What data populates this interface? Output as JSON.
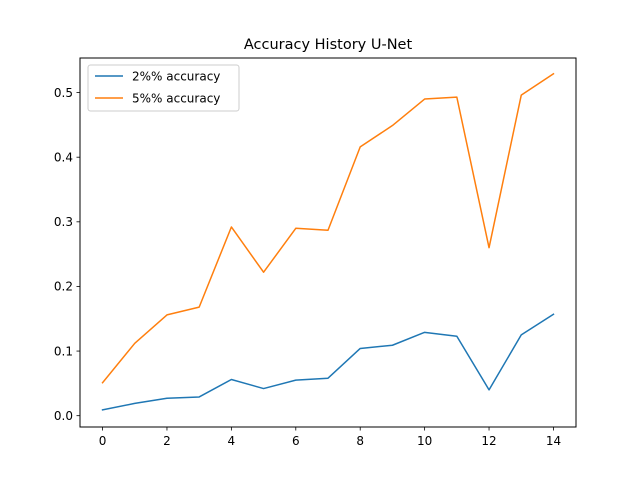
{
  "chart_data": {
    "type": "line",
    "title": "Accuracy History U-Net",
    "xlabel": "",
    "ylabel": "",
    "x": [
      0,
      1,
      2,
      3,
      4,
      5,
      6,
      7,
      8,
      9,
      10,
      11,
      12,
      13,
      14
    ],
    "xlim": [
      -0.7,
      14.7
    ],
    "ylim": [
      -0.0175,
      0.5535
    ],
    "xticks": [
      0,
      2,
      4,
      6,
      8,
      10,
      12,
      14
    ],
    "yticks": [
      0.0,
      0.1,
      0.2,
      0.3,
      0.4,
      0.5
    ],
    "xtick_labels": [
      "0",
      "2",
      "4",
      "6",
      "8",
      "10",
      "12",
      "14"
    ],
    "ytick_labels": [
      "0.0",
      "0.1",
      "0.2",
      "0.3",
      "0.4",
      "0.5"
    ],
    "grid": false,
    "legend_position": "upper-left",
    "series": [
      {
        "name": "2%% accuracy",
        "color": "#1f77b4",
        "values": [
          0.009,
          0.019,
          0.027,
          0.029,
          0.056,
          0.042,
          0.055,
          0.058,
          0.104,
          0.109,
          0.129,
          0.123,
          0.04,
          0.125,
          0.157
        ]
      },
      {
        "name": "5%% accuracy",
        "color": "#ff7f0e",
        "values": [
          0.051,
          0.112,
          0.156,
          0.168,
          0.292,
          0.222,
          0.29,
          0.287,
          0.416,
          0.449,
          0.49,
          0.493,
          0.26,
          0.496,
          0.529
        ]
      }
    ]
  }
}
